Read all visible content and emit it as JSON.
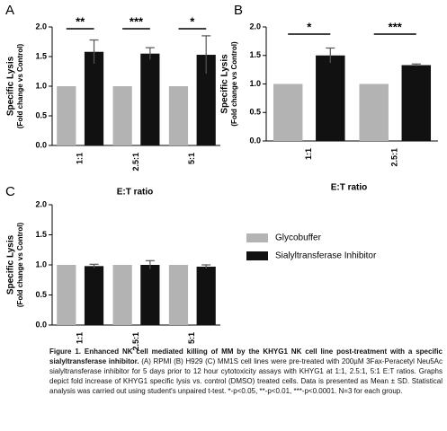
{
  "chart_data": [
    {
      "type": "bar",
      "panel": "A",
      "ylabel": [
        "Specific Lysis",
        "(Fold change vs Control)"
      ],
      "xlabel": "E:T ratio",
      "categories": [
        "1:1",
        "2.5:1",
        "5:1"
      ],
      "series": [
        {
          "name": "Glycobuffer",
          "color": "#b3b3b3",
          "values": [
            1.0,
            1.0,
            1.0
          ]
        },
        {
          "name": "Sialyltransferase Inhibitor",
          "color": "#111111",
          "values": [
            1.58,
            1.55,
            1.53
          ],
          "errors": [
            0.2,
            0.1,
            0.32
          ]
        }
      ],
      "annotations": [
        "**",
        "***",
        "*"
      ],
      "ylim": [
        0,
        2.0
      ],
      "yticks": [
        {
          "value": 0,
          "label": "0.0"
        },
        {
          "value": 0.5,
          "label": "0.5"
        },
        {
          "value": 1.0,
          "label": "1.0"
        },
        {
          "value": 1.5,
          "label": "1.5"
        },
        {
          "value": 2.0,
          "label": "2.0"
        }
      ]
    },
    {
      "type": "bar",
      "panel": "B",
      "ylabel": [
        "Specific Lysis",
        "(Fold change vs Control)"
      ],
      "xlabel": "E:T ratio",
      "categories": [
        "1:1",
        "2.5:1"
      ],
      "series": [
        {
          "name": "Glycobuffer",
          "color": "#b3b3b3",
          "values": [
            1.0,
            1.0
          ]
        },
        {
          "name": "Sialyltransferase Inhibitor",
          "color": "#111111",
          "values": [
            1.5,
            1.33
          ],
          "errors": [
            0.13,
            0.02
          ]
        }
      ],
      "annotations": [
        "*",
        "***"
      ],
      "ylim": [
        0,
        2.0
      ],
      "yticks": [
        {
          "value": 0,
          "label": "0.0"
        },
        {
          "value": 0.5,
          "label": "0.5"
        },
        {
          "value": 1.0,
          "label": "1.0"
        },
        {
          "value": 1.5,
          "label": "1.5"
        },
        {
          "value": 2.0,
          "label": "2.0"
        }
      ]
    },
    {
      "type": "bar",
      "panel": "C",
      "ylabel": [
        "Specific Lysis",
        "(Fold change vs Control)"
      ],
      "categories": [
        "1:1",
        "2.5:1",
        "5:1"
      ],
      "series": [
        {
          "name": "Glycobuffer",
          "color": "#b3b3b3",
          "values": [
            1.0,
            1.0,
            1.0
          ]
        },
        {
          "name": "Sialyltransferase Inhibitor",
          "color": "#111111",
          "values": [
            0.98,
            1.0,
            0.97
          ],
          "errors": [
            0.03,
            0.07,
            0.03
          ]
        }
      ],
      "legend": "right",
      "ylim": [
        0,
        2.0
      ],
      "yticks": [
        {
          "value": 0,
          "label": "0.0"
        },
        {
          "value": 0.5,
          "label": "0.5"
        },
        {
          "value": 1.0,
          "label": "1.0"
        },
        {
          "value": 1.5,
          "label": "1.5"
        },
        {
          "value": 2.0,
          "label": "2.0"
        }
      ]
    }
  ],
  "caption": {
    "title": "Figure 1. Enhanced NK cell mediated killing of MM by the KHYG1 NK cell line post-treatment with a specific sialyltransferase inhibitor.",
    "text": "(A) RPMI (B) H929 (C) MM1S cell lines were pre-treated with 200µM 3Fax-Peracetyl Neu5Ac sialyltransferase inhibitor for 5 days prior to 12 hour cytotoxicity assays with KHYG1 at 1:1, 2.5:1, 5:1 E:T ratios. Graphs depict fold increase of KHYG1 specific lysis vs. control (DMSO) treated cells. Data is presented as Mean ± SD. Statistical analysis was carried out using student's unpaired t-test. *-p<0.05, **-p<0.01, ***-p<0.0001. N=3 for each group."
  }
}
